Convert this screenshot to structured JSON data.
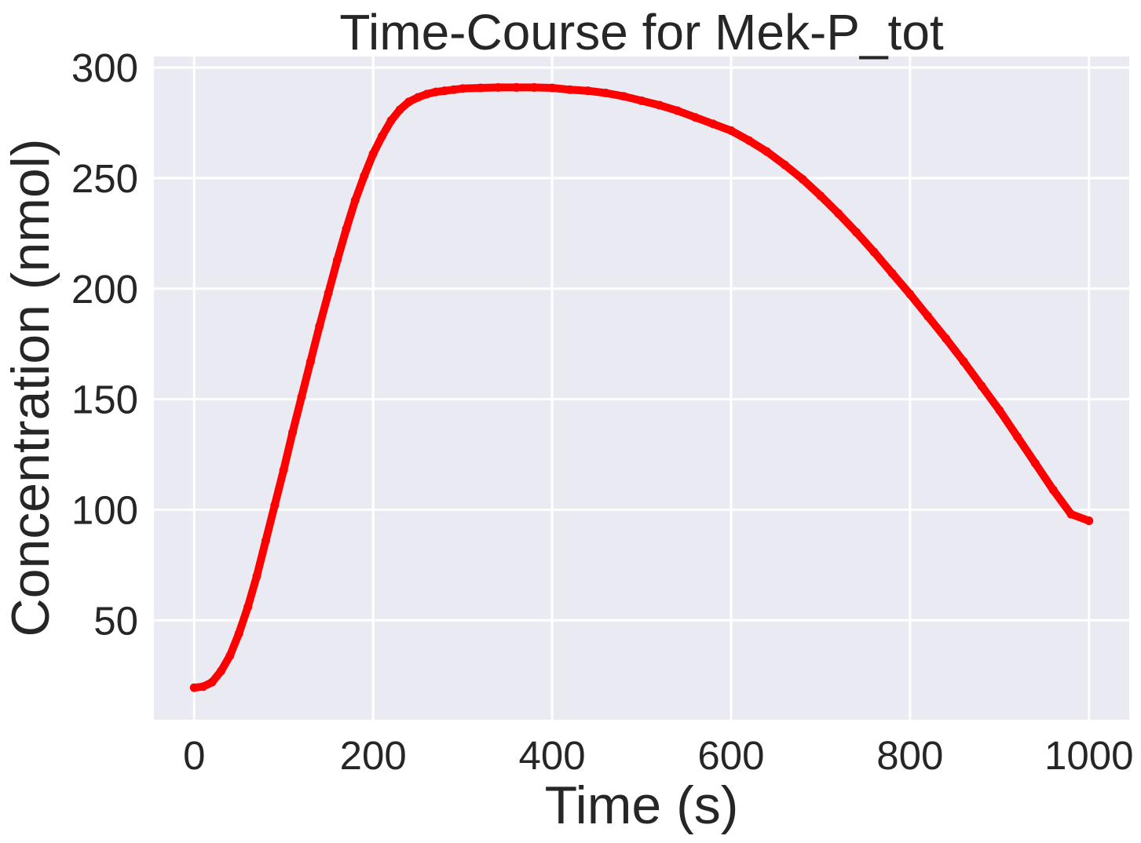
{
  "chart_data": {
    "type": "line",
    "title": "Time-Course for Mek-P_tot",
    "xlabel": "Time (s)",
    "ylabel": "Concentration (nmol)",
    "xlim": [
      -45,
      1045
    ],
    "ylim": [
      5,
      305
    ],
    "x_ticks": [
      0,
      200,
      400,
      600,
      800,
      1000
    ],
    "y_ticks": [
      50,
      100,
      150,
      200,
      250,
      300
    ],
    "grid": true,
    "background_color": "#eaeaf2",
    "grid_color": "#ffffff",
    "series": [
      {
        "color": "#ff0000",
        "marker": "dot",
        "x": [
          0,
          10,
          20,
          30,
          40,
          50,
          60,
          70,
          80,
          90,
          100,
          110,
          120,
          130,
          140,
          150,
          160,
          170,
          180,
          190,
          200,
          210,
          220,
          230,
          240,
          250,
          260,
          270,
          280,
          290,
          300,
          320,
          340,
          360,
          380,
          400,
          420,
          440,
          460,
          480,
          500,
          520,
          540,
          560,
          580,
          600,
          620,
          640,
          660,
          680,
          700,
          720,
          740,
          760,
          780,
          800,
          820,
          840,
          860,
          880,
          900,
          920,
          940,
          960,
          980,
          1000
        ],
        "y": [
          19.5,
          20,
          22,
          27,
          34,
          44,
          56,
          70,
          86,
          102,
          118,
          135,
          151,
          167,
          183,
          198,
          213,
          227,
          240,
          251,
          261,
          269,
          276,
          281,
          284.5,
          286.5,
          288,
          289,
          289.5,
          290,
          290.5,
          290.8,
          291,
          291,
          291,
          290.8,
          290,
          289.5,
          288.5,
          287,
          285,
          283,
          280.5,
          277.5,
          274.5,
          271.5,
          267,
          262,
          256,
          249.5,
          242,
          234,
          225.5,
          216.5,
          207,
          197.5,
          187.5,
          177.5,
          167,
          156,
          145,
          133,
          121,
          109,
          98,
          95
        ]
      }
    ]
  }
}
